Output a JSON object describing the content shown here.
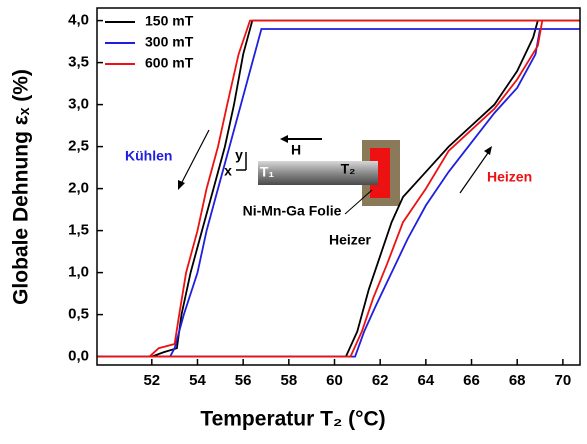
{
  "chart_data": {
    "type": "line",
    "x_label": "Temperatur T₂ (°C)",
    "y_label": "Globale Dehnung εₓ (%)",
    "xlim": [
      49.6,
      70.75
    ],
    "ylim": [
      -0.1,
      4.15
    ],
    "xticks": [
      52,
      54,
      56,
      58,
      60,
      62,
      64,
      66,
      68,
      70
    ],
    "yticks": [
      {
        "value": 0,
        "label": "0,0"
      },
      {
        "value": 0.5,
        "label": "0,5"
      },
      {
        "value": 1,
        "label": "1,0"
      },
      {
        "value": 1.5,
        "label": "1,5"
      },
      {
        "value": 2,
        "label": "2,0"
      },
      {
        "value": 2.5,
        "label": "2,5"
      },
      {
        "value": 3,
        "label": "3,0"
      },
      {
        "value": 3.5,
        "label": "3,5"
      },
      {
        "value": 4,
        "label": "4,0"
      }
    ],
    "legend": "top-left",
    "series": [
      {
        "name": "150 mT",
        "color": "#000000",
        "x": [
          70.75,
          56.4,
          56.0,
          55.6,
          55.2,
          54.7,
          54.2,
          53.7,
          53.3,
          53.1,
          52.5,
          52.0,
          49.6,
          60.5,
          61.0,
          61.5,
          62.0,
          62.5,
          63.0,
          64.0,
          65.0,
          66.0,
          67.0,
          68.0,
          68.7,
          68.9,
          70.75
        ],
        "values": [
          4.0,
          4.0,
          3.6,
          3.0,
          2.5,
          2.0,
          1.5,
          1.0,
          0.5,
          0.1,
          0.05,
          0,
          0,
          0,
          0.3,
          0.8,
          1.2,
          1.6,
          1.9,
          2.2,
          2.5,
          2.75,
          3.0,
          3.4,
          3.8,
          4.0,
          4.0
        ]
      },
      {
        "name": "300 mT",
        "color": "#1f1fe0",
        "x": [
          70.75,
          56.8,
          56.3,
          55.9,
          55.4,
          54.9,
          54.4,
          54.0,
          53.4,
          53.0,
          52.8,
          49.6,
          60.9,
          61.3,
          61.8,
          62.5,
          63.2,
          64.0,
          65.0,
          66.0,
          67.0,
          68.0,
          68.8,
          69.0,
          70.75
        ],
        "values": [
          3.9,
          3.9,
          3.4,
          3.0,
          2.5,
          2.0,
          1.5,
          1.0,
          0.5,
          0.1,
          0,
          0,
          0,
          0.3,
          0.6,
          1.0,
          1.4,
          1.8,
          2.2,
          2.55,
          2.9,
          3.2,
          3.6,
          3.9,
          3.9
        ]
      },
      {
        "name": "600 mT",
        "color": "#ee1111",
        "x": [
          70.75,
          56.3,
          55.8,
          55.3,
          54.9,
          54.4,
          54.0,
          53.5,
          53.2,
          53.0,
          52.3,
          51.9,
          49.6,
          60.7,
          61.2,
          61.7,
          62.3,
          63.0,
          64.0,
          65.0,
          66.0,
          67.0,
          68.0,
          68.9,
          69.1,
          70.75
        ],
        "values": [
          4.0,
          4.0,
          3.6,
          3.0,
          2.5,
          2.0,
          1.5,
          1.0,
          0.5,
          0.15,
          0.1,
          0,
          0,
          0,
          0.3,
          0.7,
          1.1,
          1.6,
          2.0,
          2.45,
          2.7,
          2.95,
          3.3,
          3.7,
          4.0,
          4.0
        ]
      }
    ],
    "annotations": [
      {
        "text": "Kühlen",
        "color": "#1f1fe0"
      },
      {
        "text": "Heizen",
        "color": "#ee1111"
      },
      {
        "text": "H",
        "color": "#000000"
      },
      {
        "text": "y",
        "color": "#000000"
      },
      {
        "text": "x",
        "color": "#000000"
      },
      {
        "text": "T₁",
        "color": "#ffffff"
      },
      {
        "text": "T₂",
        "color": "#000000"
      },
      {
        "text": "Ni-Mn-Ga Folie",
        "color": "#000000"
      },
      {
        "text": "Heizer",
        "color": "#000000"
      }
    ]
  }
}
